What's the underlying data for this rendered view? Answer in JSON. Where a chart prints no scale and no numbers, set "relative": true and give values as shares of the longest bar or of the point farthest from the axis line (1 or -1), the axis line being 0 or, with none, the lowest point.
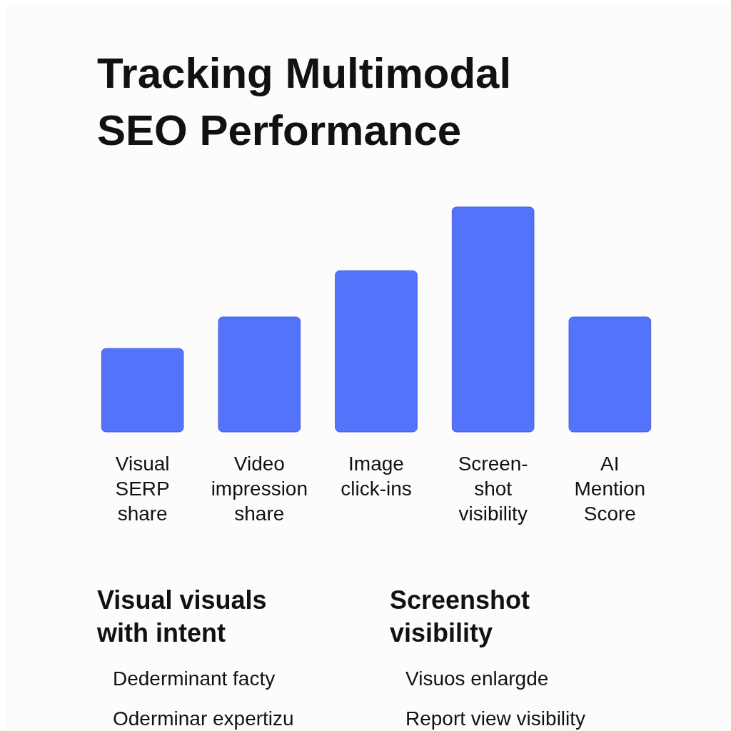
{
  "chart_data": {
    "type": "bar",
    "title": "Tracking Multimodal\nSEO Performance",
    "categories": [
      "Visual\nSERP\nshare",
      "Video\nimpression\nshare",
      "Image\nclick-ins",
      "Screen-\nshot\nvisibility",
      "AI\nMention\nScore"
    ],
    "values": [
      0.371,
      0.511,
      0.717,
      1,
      0.511
    ],
    "relative": true,
    "color": "#5473fa",
    "annotations": [
      "Visual visuals\nwith intent",
      "Dederminant facty",
      "Oderminar expertizu",
      "Screenshot\nvisibility",
      "Visuos enlargde",
      "Report view visibility"
    ]
  }
}
